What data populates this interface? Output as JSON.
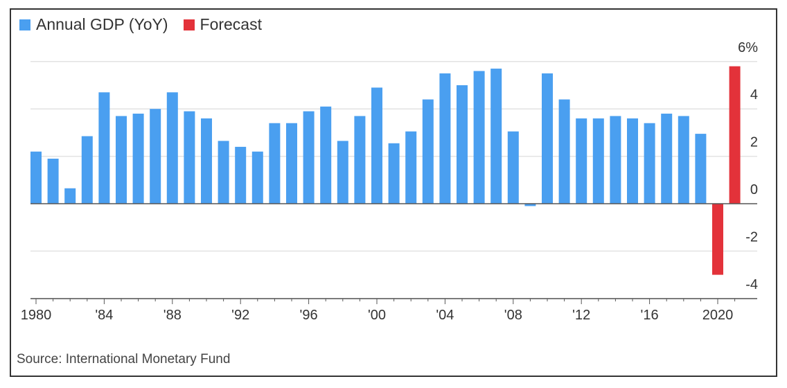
{
  "chart_data": {
    "type": "bar",
    "title": "",
    "legend": [
      {
        "label": "Annual GDP (YoY)",
        "color": "#4a9ff0"
      },
      {
        "label": "Forecast",
        "color": "#e3323a"
      }
    ],
    "legend_placement": "top-left",
    "x": [
      1980,
      1981,
      1982,
      1983,
      1984,
      1985,
      1986,
      1987,
      1988,
      1989,
      1990,
      1991,
      1992,
      1993,
      1994,
      1995,
      1996,
      1997,
      1998,
      1999,
      2000,
      2001,
      2002,
      2003,
      2004,
      2005,
      2006,
      2007,
      2008,
      2009,
      2010,
      2011,
      2012,
      2013,
      2014,
      2015,
      2016,
      2017,
      2018,
      2019,
      2020,
      2021
    ],
    "series": [
      {
        "name": "Annual GDP (YoY)",
        "values": [
          2.2,
          1.9,
          0.65,
          2.85,
          4.7,
          3.7,
          3.8,
          4.0,
          4.7,
          3.9,
          3.6,
          2.65,
          2.4,
          2.2,
          3.4,
          3.4,
          3.9,
          4.1,
          2.65,
          3.7,
          4.9,
          2.55,
          3.05,
          4.4,
          5.5,
          5.0,
          5.6,
          5.7,
          3.05,
          -0.1,
          5.5,
          4.4,
          3.6,
          3.6,
          3.7,
          3.6,
          3.4,
          3.8,
          3.7,
          2.95,
          null,
          null
        ]
      },
      {
        "name": "Forecast",
        "values": [
          null,
          null,
          null,
          null,
          null,
          null,
          null,
          null,
          null,
          null,
          null,
          null,
          null,
          null,
          null,
          null,
          null,
          null,
          null,
          null,
          null,
          null,
          null,
          null,
          null,
          null,
          null,
          null,
          null,
          null,
          null,
          null,
          null,
          null,
          null,
          null,
          null,
          null,
          null,
          null,
          -3.0,
          5.8
        ]
      }
    ],
    "xtick_labels": [
      {
        "year": 1980,
        "label": "1980"
      },
      {
        "year": 1984,
        "label": "'84"
      },
      {
        "year": 1988,
        "label": "'88"
      },
      {
        "year": 1992,
        "label": "'92"
      },
      {
        "year": 1996,
        "label": "'96"
      },
      {
        "year": 2000,
        "label": "'00"
      },
      {
        "year": 2004,
        "label": "'04"
      },
      {
        "year": 2008,
        "label": "'08"
      },
      {
        "year": 2012,
        "label": "'12"
      },
      {
        "year": 2016,
        "label": "'16"
      },
      {
        "year": 2020,
        "label": "2020"
      }
    ],
    "yticks": [
      {
        "value": 6,
        "label": "6%"
      },
      {
        "value": 4,
        "label": "4"
      },
      {
        "value": 2,
        "label": "2"
      },
      {
        "value": 0,
        "label": "0"
      },
      {
        "value": -2,
        "label": "-2"
      },
      {
        "value": -4,
        "label": "-4"
      }
    ],
    "ylim": [
      -4,
      6
    ],
    "grid": true,
    "xlabel": "",
    "ylabel": "",
    "source": "Source: International Monetary Fund"
  }
}
